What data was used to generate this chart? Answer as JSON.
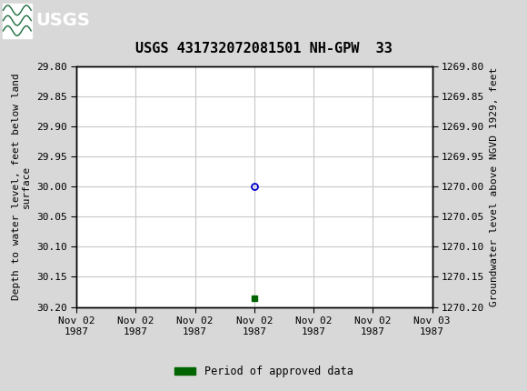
{
  "title": "USGS 431732072081501 NH-GPW  33",
  "header_bg_color": "#1a6b3c",
  "plot_bg_color": "#ffffff",
  "fig_bg_color": "#d8d8d8",
  "outer_bg_color": "#d8d8d8",
  "grid_color": "#c8c8c8",
  "left_ylabel": "Depth to water level, feet below land\nsurface",
  "right_ylabel": "Groundwater level above NGVD 1929, feet",
  "ylim_left": [
    29.8,
    30.2
  ],
  "ylim_right": [
    1269.8,
    1270.2
  ],
  "yticks_left": [
    29.8,
    29.85,
    29.9,
    29.95,
    30.0,
    30.05,
    30.1,
    30.15,
    30.2
  ],
  "yticks_right": [
    1269.8,
    1269.85,
    1269.9,
    1269.95,
    1270.0,
    1270.05,
    1270.1,
    1270.15,
    1270.2
  ],
  "xlim": [
    0,
    6
  ],
  "xtick_labels": [
    "Nov 02\n1987",
    "Nov 02\n1987",
    "Nov 02\n1987",
    "Nov 02\n1987",
    "Nov 02\n1987",
    "Nov 02\n1987",
    "Nov 03\n1987"
  ],
  "xtick_positions": [
    0,
    1,
    2,
    3,
    4,
    5,
    6
  ],
  "data_point_x": 3,
  "data_point_y": 30.0,
  "data_point_color": "#0000cc",
  "green_bar_x": 3,
  "green_bar_y": 30.185,
  "green_bar_color": "#006400",
  "legend_label": "Period of approved data",
  "legend_color": "#006400",
  "font_family": "monospace",
  "title_fontsize": 11,
  "axis_label_fontsize": 8,
  "tick_fontsize": 8
}
